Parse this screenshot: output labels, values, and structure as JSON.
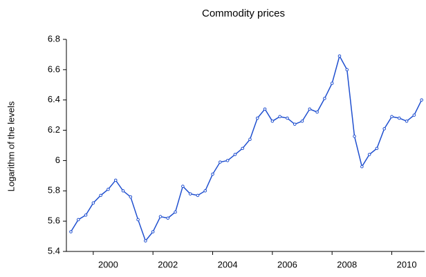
{
  "chart_data": {
    "type": "line",
    "title": "Commodity prices",
    "y_label": "Logarithm of the levels",
    "x": [
      1999.25,
      1999.5,
      1999.75,
      2000,
      2000.25,
      2000.5,
      2000.75,
      2001,
      2001.25,
      2001.5,
      2001.75,
      2002,
      2002.25,
      2002.5,
      2002.75,
      2003,
      2003.25,
      2003.5,
      2003.75,
      2004,
      2004.25,
      2004.5,
      2004.75,
      2005,
      2005.25,
      2005.5,
      2005.75,
      2006,
      2006.25,
      2006.5,
      2006.75,
      2007,
      2007.25,
      2007.5,
      2007.75,
      2008,
      2008.25,
      2008.5,
      2008.75,
      2009,
      2009.25,
      2009.5,
      2009.75,
      2010,
      2010.25,
      2010.5,
      2010.75,
      2011
    ],
    "series": [
      {
        "name": "Commodity prices",
        "color": "#1f4fcf",
        "values": [
          5.53,
          5.61,
          5.64,
          5.72,
          5.77,
          5.81,
          5.87,
          5.8,
          5.76,
          5.61,
          5.47,
          5.53,
          5.63,
          5.62,
          5.66,
          5.83,
          5.78,
          5.77,
          5.8,
          5.91,
          5.99,
          6.0,
          6.04,
          6.08,
          6.14,
          6.28,
          6.34,
          6.26,
          6.29,
          6.28,
          6.24,
          6.26,
          6.34,
          6.32,
          6.41,
          6.51,
          6.69,
          6.6,
          6.16,
          5.96,
          6.04,
          6.08,
          6.21,
          6.29,
          6.28,
          6.26,
          6.3,
          6.4
        ]
      }
    ],
    "xlim": [
      1999.1,
      2011.1
    ],
    "xticks": [
      2000,
      2002,
      2004,
      2006,
      2008,
      2010
    ],
    "ylim": [
      5.4,
      6.8
    ],
    "yticks": [
      5.4,
      5.6,
      5.8,
      6.0,
      6.2,
      6.4,
      6.6,
      6.8
    ]
  }
}
